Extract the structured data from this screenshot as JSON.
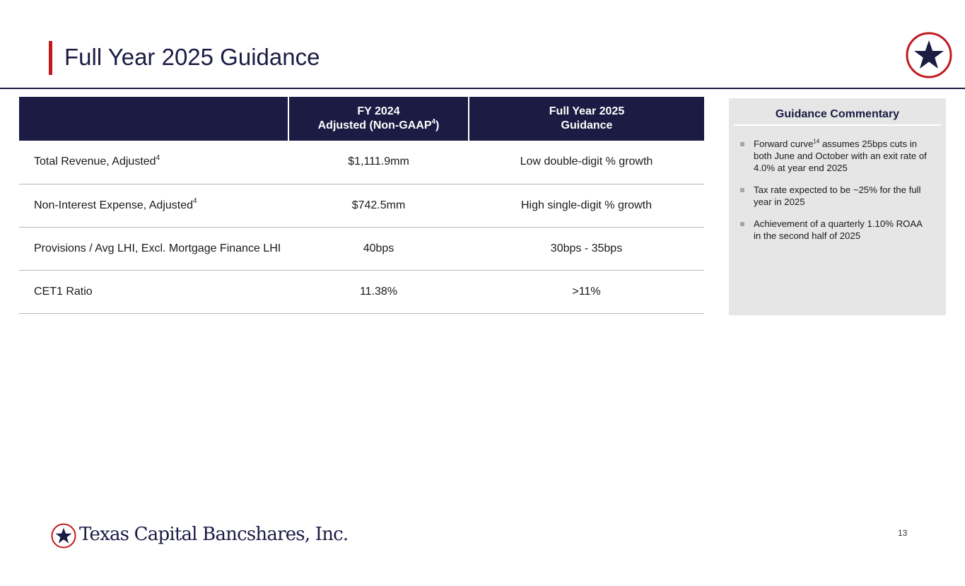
{
  "header": {
    "title": "Full Year 2025 Guidance"
  },
  "brand": {
    "name": "Texas Capital Bancshares, Inc.",
    "logo_icon": "star-circle-icon",
    "navy": "#1b1b44",
    "red": "#c0191e"
  },
  "table": {
    "columns": [
      {
        "line1": "",
        "line2": ""
      },
      {
        "line1": "FY 2024",
        "line2": "Adjusted (Non-GAAP",
        "sup": "4",
        "suffix": ")"
      },
      {
        "line1": "Full Year 2025",
        "line2": "Guidance"
      }
    ],
    "rows": [
      {
        "metric": "Total Revenue, Adjusted",
        "sup": "4",
        "fy2024": "$1,111.9mm",
        "guidance": "Low double-digit % growth"
      },
      {
        "metric": "Non-Interest Expense, Adjusted",
        "sup": "4",
        "fy2024": "$742.5mm",
        "guidance": "High single-digit % growth"
      },
      {
        "metric": "Provisions / Avg LHI, Excl. Mortgage Finance LHI",
        "sup": "",
        "fy2024": "40bps",
        "guidance": "30bps - 35bps"
      },
      {
        "metric": "CET1 Ratio",
        "sup": "",
        "fy2024": "11.38%",
        "guidance": ">11%"
      }
    ]
  },
  "commentary": {
    "title": "Guidance Commentary",
    "items": [
      {
        "pre": "Forward curve",
        "sup": "14",
        "post": " assumes 25bps cuts in both June and October with an exit rate of 4.0% at year end 2025"
      },
      {
        "pre": "Tax rate expected to be ~25% for the full year in 2025",
        "sup": "",
        "post": ""
      },
      {
        "pre": "Achievement of a quarterly 1.10% ROAA in the second half of 2025",
        "sup": "",
        "post": ""
      }
    ]
  },
  "footer": {
    "page_number": "13"
  }
}
